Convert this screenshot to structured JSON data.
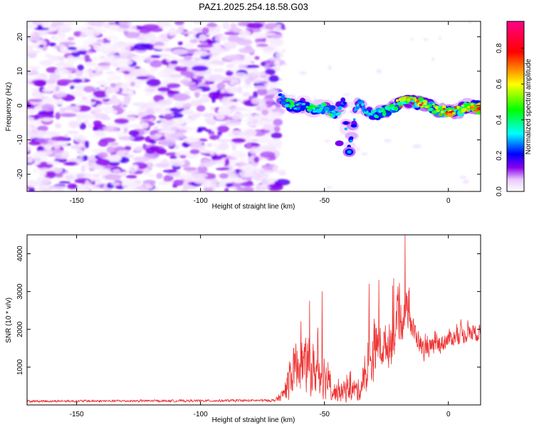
{
  "figure": {
    "title": "PAZ1.2025.254.18.58.G03"
  },
  "chart_data": [
    {
      "type": "heatmap",
      "xlabel": "Height of straight line (km)",
      "ylabel": "Frequency (Hz)",
      "xlim": [
        -170,
        13
      ],
      "ylim": [
        -25,
        24.5
      ],
      "xticks": [
        -150,
        -100,
        -50,
        0
      ],
      "yticks": [
        -20,
        -10,
        0,
        10,
        20
      ],
      "noise_region_x": [
        -170,
        -68
      ],
      "signal_track": [
        {
          "x": -68,
          "y": 2.0,
          "amp": 0.25
        },
        {
          "x": -64,
          "y": 0.5,
          "amp": 0.45
        },
        {
          "x": -62,
          "y": -0.5,
          "amp": 0.4
        },
        {
          "x": -58,
          "y": 0.5,
          "amp": 0.3
        },
        {
          "x": -55,
          "y": -1.0,
          "amp": 0.5
        },
        {
          "x": -52,
          "y": -0.5,
          "amp": 0.35
        },
        {
          "x": -49,
          "y": -1.0,
          "amp": 0.45
        },
        {
          "x": -45,
          "y": -2.5,
          "amp": 0.4
        },
        {
          "x": -42,
          "y": 1.5,
          "amp": 0.25
        },
        {
          "x": -40,
          "y": -13.5,
          "amp": 0.3
        },
        {
          "x": -37,
          "y": 1.0,
          "amp": 0.3
        },
        {
          "x": -34,
          "y": -0.5,
          "amp": 0.3
        },
        {
          "x": -31,
          "y": -3.0,
          "amp": 0.4
        },
        {
          "x": -28,
          "y": -2.0,
          "amp": 0.4
        },
        {
          "x": -24,
          "y": -1.0,
          "amp": 0.45
        },
        {
          "x": -21,
          "y": 0.0,
          "amp": 0.5
        },
        {
          "x": -18,
          "y": 1.5,
          "amp": 0.75
        },
        {
          "x": -15,
          "y": 1.5,
          "amp": 0.65
        },
        {
          "x": -11,
          "y": 0.5,
          "amp": 0.8
        },
        {
          "x": -8,
          "y": 0.0,
          "amp": 0.6
        },
        {
          "x": -4,
          "y": -1.5,
          "amp": 0.55
        },
        {
          "x": 0,
          "y": -1.5,
          "amp": 0.9
        },
        {
          "x": 4,
          "y": -1.5,
          "amp": 0.6
        },
        {
          "x": 8,
          "y": -0.5,
          "amp": 0.6
        },
        {
          "x": 11,
          "y": -0.5,
          "amp": 0.9
        }
      ]
    },
    {
      "type": "colorbar",
      "label": "Normalized spectral amplitude",
      "range": [
        0.0,
        0.95
      ],
      "ticks": [
        0.0,
        0.2,
        0.4,
        0.6,
        0.8
      ],
      "tick_labels": [
        "0.0",
        "0.2",
        "0.4",
        "0.6",
        "0.8"
      ],
      "colors": [
        "#ffffff",
        "#7a00e8",
        "#0000ff",
        "#00ffff",
        "#00ff00",
        "#ffff00",
        "#ff0000",
        "#ff00aa"
      ]
    },
    {
      "type": "line",
      "xlabel": "Height of straight line (km)",
      "ylabel": "SNR (10 * v/v)",
      "xlim": [
        -170,
        13
      ],
      "ylim": [
        0,
        4500
      ],
      "xticks": [
        -150,
        -100,
        -50,
        0
      ],
      "yticks": [
        1000,
        2000,
        3000,
        4000
      ],
      "color": "#ee3333",
      "envelope": {
        "x": [
          -170,
          -100,
          -70,
          -67,
          -64,
          -62,
          -60,
          -55,
          -50,
          -47,
          -44,
          -40,
          -36,
          -32,
          -30,
          -27,
          -24,
          -21,
          -19,
          -17.5,
          -16,
          -14,
          -12,
          -10,
          -8,
          -5,
          -2,
          0,
          3,
          6,
          9,
          13
        ],
        "center": [
          100,
          110,
          120,
          250,
          650,
          1000,
          1100,
          950,
          800,
          350,
          320,
          420,
          380,
          900,
          1500,
          1500,
          1600,
          1900,
          2250,
          2550,
          2400,
          1950,
          1700,
          1450,
          1500,
          1550,
          1650,
          1750,
          1800,
          1850,
          1900,
          1900
        ],
        "spread": [
          40,
          40,
          45,
          180,
          600,
          750,
          850,
          850,
          700,
          330,
          300,
          380,
          350,
          700,
          1000,
          650,
          700,
          700,
          750,
          650,
          550,
          400,
          320,
          330,
          300,
          320,
          280,
          300,
          260,
          280,
          280,
          250
        ]
      },
      "peaks": [
        {
          "x": -17.5,
          "y": 4500
        },
        {
          "x": -32,
          "y": 3200
        },
        {
          "x": -28,
          "y": 3300
        },
        {
          "x": -22,
          "y": 3350
        },
        {
          "x": -51,
          "y": 3000
        },
        {
          "x": -56,
          "y": 2750
        },
        {
          "x": -22.5,
          "y": 3150
        }
      ]
    }
  ]
}
